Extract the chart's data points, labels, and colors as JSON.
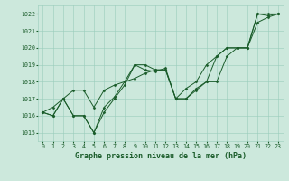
{
  "title": "Graphe pression niveau de la mer (hPa)",
  "xlim": [
    -0.5,
    23.5
  ],
  "ylim": [
    1014.5,
    1022.5
  ],
  "yticks": [
    1015,
    1016,
    1017,
    1018,
    1019,
    1020,
    1021,
    1022
  ],
  "xticks": [
    0,
    1,
    2,
    3,
    4,
    5,
    6,
    7,
    8,
    9,
    10,
    11,
    12,
    13,
    14,
    15,
    16,
    17,
    18,
    19,
    20,
    21,
    22,
    23
  ],
  "xlabels": [
    "0",
    "1",
    "2",
    "3",
    "4",
    "5",
    "6",
    "7",
    "8",
    "9",
    "10",
    "11",
    "12",
    "13",
    "14",
    "15",
    "16",
    "17",
    "18",
    "19",
    "20",
    "21",
    "22",
    "23"
  ],
  "bg_color": "#cce8dc",
  "grid_color": "#99ccbb",
  "line_color": "#1a5c2a",
  "series": [
    [
      1016.2,
      1016.0,
      1017.0,
      1016.0,
      1016.0,
      1015.0,
      1016.2,
      1017.0,
      1017.8,
      1019.0,
      1018.7,
      1018.6,
      1018.8,
      1017.0,
      1017.0,
      1017.5,
      1018.0,
      1018.0,
      1019.5,
      1020.0,
      1020.0,
      1022.0,
      1021.9,
      1022.0
    ],
    [
      1016.2,
      1016.0,
      1017.0,
      1016.0,
      1016.0,
      1015.0,
      1016.5,
      1017.1,
      1018.0,
      1019.0,
      1019.0,
      1018.7,
      1018.7,
      1017.0,
      1017.0,
      1017.6,
      1018.0,
      1019.5,
      1020.0,
      1020.0,
      1020.0,
      1022.0,
      1022.0,
      1022.0
    ],
    [
      1016.2,
      1016.5,
      1017.0,
      1017.5,
      1017.5,
      1016.5,
      1017.5,
      1017.8,
      1018.0,
      1018.2,
      1018.5,
      1018.7,
      1018.7,
      1017.0,
      1017.6,
      1018.0,
      1019.0,
      1019.5,
      1020.0,
      1020.0,
      1020.0,
      1021.5,
      1021.8,
      1022.0
    ]
  ],
  "font_color": "#1a5c2a",
  "title_fontsize": 6.0,
  "tick_fontsize": 4.8,
  "marker": "D",
  "marker_size": 1.5,
  "linewidth": 0.7
}
